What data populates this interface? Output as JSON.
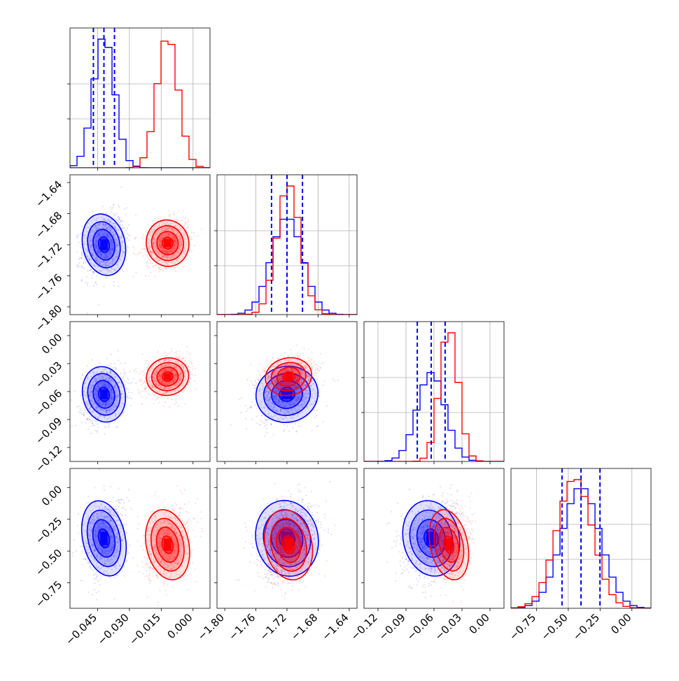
{
  "chart_data": {
    "type": "corner",
    "title": "",
    "parameters": [
      {
        "range": [
          -0.058,
          0.008
        ],
        "ticks": [
          -0.045,
          -0.03,
          -0.015,
          0.0
        ],
        "tick_labels": [
          "−0.045",
          "−0.030",
          "−0.015",
          "0.000"
        ]
      },
      {
        "range": [
          -1.81,
          -1.63
        ],
        "ticks": [
          -1.8,
          -1.76,
          -1.72,
          -1.68,
          -1.64
        ],
        "tick_labels": [
          "−1.80",
          "−1.76",
          "−1.72",
          "−1.68",
          "−1.64"
        ]
      },
      {
        "range": [
          -0.135,
          0.015
        ],
        "ticks": [
          -0.12,
          -0.09,
          -0.06,
          -0.03,
          0.0
        ],
        "tick_labels": [
          "−0.12",
          "−0.09",
          "−0.06",
          "−0.03",
          "0.00"
        ]
      },
      {
        "range": [
          -0.95,
          0.15
        ],
        "ticks": [
          -0.75,
          -0.5,
          -0.25,
          0.0
        ],
        "tick_labels": [
          "−0.75",
          "−0.50",
          "−0.25",
          "0.00"
        ]
      }
    ],
    "series": [
      {
        "color": "#0000ff",
        "mean": [
          -0.042,
          -1.72,
          -0.063,
          -0.4
        ],
        "sigma": [
          0.005,
          0.02,
          0.015,
          0.15
        ],
        "corr": 0.2,
        "quantile_lines": true
      },
      {
        "color": "#ff0000",
        "mean": [
          -0.012,
          -1.718,
          -0.044,
          -0.45
        ],
        "sigma": [
          0.005,
          0.015,
          0.01,
          0.14
        ],
        "corr": 0.25,
        "quantile_lines": false
      }
    ],
    "quantiles": [
      0.16,
      0.5,
      0.84
    ],
    "quantile_line_color": "#0000ff",
    "contour_levels_sigma": [
      0.5,
      1.0,
      1.5,
      2.0
    ],
    "grid": true,
    "legend": "none"
  }
}
